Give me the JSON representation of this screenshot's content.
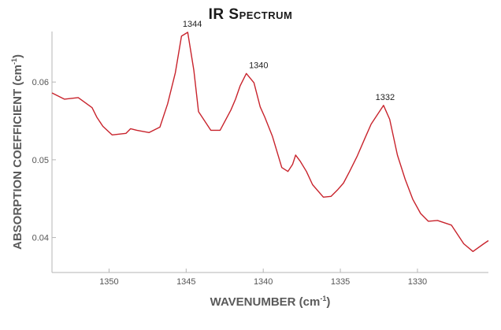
{
  "chart_data": {
    "type": "line",
    "title": "IR Spectrum",
    "xlabel": "WAVENUMBER (cm",
    "xlabel_sup": "-1",
    "xlabel_suffix": ")",
    "ylabel": "ABSORPTION COEFFICIENT (cm",
    "ylabel_sup": "-1",
    "ylabel_suffix": ")",
    "x_reversed": true,
    "xlim": [
      1353.7,
      1325.4
    ],
    "ylim": [
      0.0355,
      0.0665
    ],
    "xticks": [
      1350,
      1345,
      1340,
      1335,
      1330
    ],
    "yticks": [
      0.04,
      0.05,
      0.06
    ],
    "grid": false,
    "line_color": "#c8232c",
    "series": [
      {
        "x": [
          1353.7,
          1352.9,
          1352.0,
          1351.1,
          1350.8,
          1350.4,
          1349.8,
          1348.9,
          1348.6,
          1348.2,
          1347.4,
          1346.7,
          1346.2,
          1345.7,
          1345.3,
          1344.9,
          1344.5,
          1344.2,
          1343.4,
          1342.8,
          1342.1,
          1341.8,
          1341.5,
          1341.1,
          1340.6,
          1340.2,
          1339.9,
          1339.4,
          1338.8,
          1338.4,
          1338.1,
          1337.9,
          1337.6,
          1337.2,
          1336.8,
          1336.1,
          1335.6,
          1335.2,
          1334.8,
          1334.4,
          1333.9,
          1333.4,
          1333.0,
          1332.2,
          1331.8,
          1331.3,
          1330.8,
          1330.3,
          1329.8,
          1329.3,
          1328.7,
          1327.8,
          1327.0,
          1326.4,
          1325.7,
          1325.4
        ],
        "y": [
          0.0586,
          0.0578,
          0.058,
          0.0567,
          0.0555,
          0.0543,
          0.0532,
          0.0534,
          0.054,
          0.0538,
          0.0535,
          0.0542,
          0.0572,
          0.0612,
          0.0659,
          0.0664,
          0.0615,
          0.0562,
          0.0538,
          0.0538,
          0.0564,
          0.0578,
          0.0595,
          0.0611,
          0.0599,
          0.0568,
          0.0555,
          0.053,
          0.049,
          0.0485,
          0.0494,
          0.0506,
          0.0498,
          0.0485,
          0.0468,
          0.0452,
          0.0453,
          0.0461,
          0.047,
          0.0485,
          0.0505,
          0.0528,
          0.0546,
          0.057,
          0.0552,
          0.0506,
          0.0475,
          0.0449,
          0.0431,
          0.0421,
          0.0422,
          0.0416,
          0.0392,
          0.0382,
          0.0392,
          0.0396
        ]
      }
    ],
    "annotations": [
      {
        "text": "1344",
        "x": 1344.6,
        "y": 0.0664
      },
      {
        "text": "1340",
        "x": 1340.3,
        "y": 0.0611
      },
      {
        "text": "1332",
        "x": 1332.1,
        "y": 0.057
      }
    ]
  }
}
